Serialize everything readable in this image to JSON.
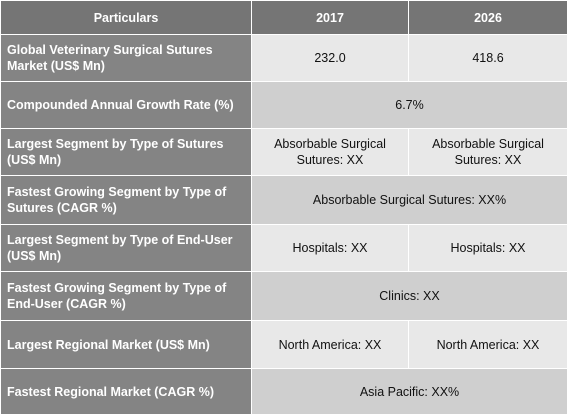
{
  "table": {
    "headers": [
      "Particulars",
      "2017",
      "2026"
    ],
    "rows": [
      {
        "label": "Global Veterinary Surgical Sutures Market (US$ Mn)",
        "v2017": "232.0",
        "v2026": "418.6"
      },
      {
        "label": "Compounded Annual Growth Rate (%)",
        "merged": "6.7%"
      },
      {
        "label": "Largest Segment by Type of Sutures (US$ Mn)",
        "v2017": "Absorbable Surgical Sutures: XX",
        "v2026": "Absorbable Surgical Sutures: XX"
      },
      {
        "label": "Fastest Growing Segment by Type of Sutures (CAGR %)",
        "merged": "Absorbable Surgical Sutures: XX%"
      },
      {
        "label": "Largest Segment by Type of End-User (US$ Mn)",
        "v2017": "Hospitals: XX",
        "v2026": "Hospitals: XX"
      },
      {
        "label": "Fastest Growing Segment by Type of End-User (CAGR %)",
        "merged": "Clinics: XX"
      },
      {
        "label": "Largest Regional Market (US$ Mn)",
        "v2017": "North America: XX",
        "v2026": "North America: XX"
      },
      {
        "label": "Fastest Regional Market (CAGR %)",
        "merged": "Asia Pacific: XX%"
      }
    ]
  }
}
